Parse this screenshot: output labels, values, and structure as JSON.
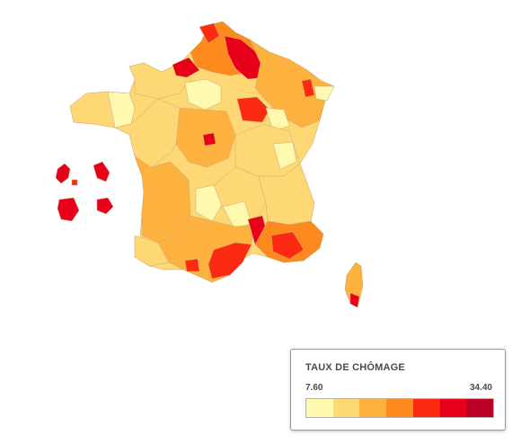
{
  "legend": {
    "title": "TAUX DE CHÔMAGE",
    "min_label": "7.60",
    "max_label": "34.40",
    "colors": [
      "#fff9b0",
      "#fed875",
      "#fdb13f",
      "#fd8a1e",
      "#fc2a12",
      "#e8001a",
      "#bd0026"
    ]
  },
  "map": {
    "regions": [
      "France métropolitaine (départements)",
      "Corse",
      "Guadeloupe",
      "Martinique",
      "Guyane",
      "La Réunion",
      "Mayotte"
    ]
  }
}
